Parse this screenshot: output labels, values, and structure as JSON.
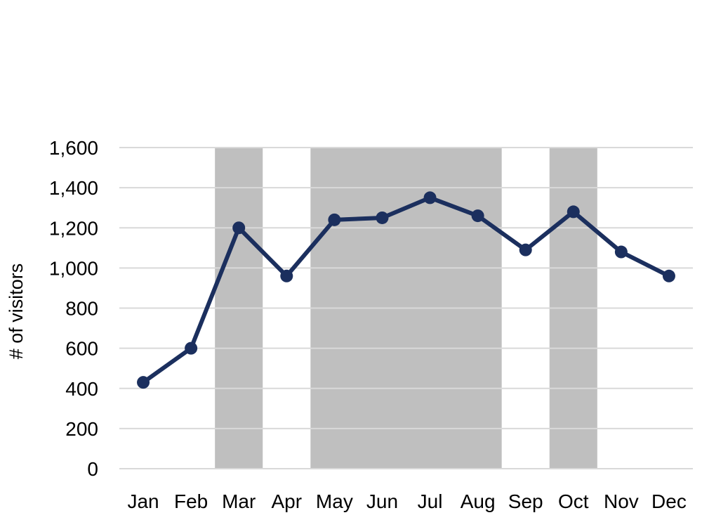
{
  "chart_data": {
    "type": "line",
    "title": "",
    "xlabel": "",
    "ylabel": "# of visitors",
    "categories": [
      "Jan",
      "Feb",
      "Mar",
      "Apr",
      "May",
      "Jun",
      "Jul",
      "Aug",
      "Sep",
      "Oct",
      "Nov",
      "Dec"
    ],
    "values": [
      430,
      600,
      1200,
      960,
      1240,
      1250,
      1350,
      1260,
      1090,
      1280,
      1080,
      960
    ],
    "ylim": [
      0,
      1600
    ],
    "ytick_step": 200,
    "ytick_labels": [
      "0",
      "200",
      "400",
      "600",
      "800",
      "1,000",
      "1,200",
      "1,400",
      "1,600"
    ],
    "grid": "horizontal-only",
    "legend": "none",
    "colors": {
      "line": "#1b2f5e",
      "marker": "#1b2f5e",
      "gridline": "#d9d9d9",
      "shaded_band": "#bfbfbf",
      "text": "#000000",
      "background": "#ffffff"
    },
    "shaded_regions": [
      {
        "from": "Mar",
        "to": "Mar"
      },
      {
        "from": "May",
        "to": "Aug"
      },
      {
        "from": "Oct",
        "to": "Oct"
      }
    ]
  }
}
